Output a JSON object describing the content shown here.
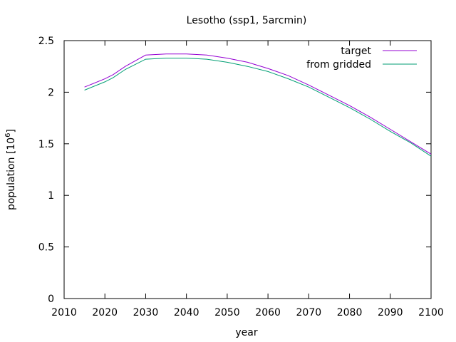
{
  "chart_data": {
    "type": "line",
    "title": "Lesotho (ssp1, 5arcmin)",
    "xlabel": "year",
    "ylabel_text": "population [10",
    "ylabel_exp": "6",
    "ylabel_close": "]",
    "xlim": [
      2010,
      2100
    ],
    "ylim": [
      0,
      2.5
    ],
    "xticks": [
      2010,
      2020,
      2030,
      2040,
      2050,
      2060,
      2070,
      2080,
      2090,
      2100
    ],
    "yticks": [
      0,
      0.5,
      1,
      1.5,
      2,
      2.5
    ],
    "ytick_labels": [
      "0",
      "0.5",
      "1",
      "1.5",
      "2",
      "2.5"
    ],
    "legend_position": "top-right",
    "series": [
      {
        "name": "target",
        "color": "#9400d3",
        "x": [
          2015,
          2020,
          2022,
          2025,
          2030,
          2035,
          2040,
          2045,
          2050,
          2055,
          2060,
          2065,
          2070,
          2075,
          2080,
          2085,
          2090,
          2095,
          2100
        ],
        "y": [
          2.05,
          2.13,
          2.17,
          2.25,
          2.36,
          2.37,
          2.37,
          2.36,
          2.33,
          2.29,
          2.23,
          2.16,
          2.07,
          1.97,
          1.87,
          1.76,
          1.64,
          1.52,
          1.4
        ]
      },
      {
        "name": "from gridded",
        "color": "#009e73",
        "x": [
          2015,
          2020,
          2022,
          2025,
          2030,
          2035,
          2040,
          2045,
          2050,
          2055,
          2060,
          2065,
          2070,
          2075,
          2080,
          2085,
          2090,
          2095,
          2100
        ],
        "y": [
          2.02,
          2.1,
          2.14,
          2.22,
          2.32,
          2.33,
          2.33,
          2.32,
          2.29,
          2.25,
          2.2,
          2.13,
          2.05,
          1.95,
          1.85,
          1.74,
          1.62,
          1.51,
          1.38
        ]
      }
    ]
  }
}
